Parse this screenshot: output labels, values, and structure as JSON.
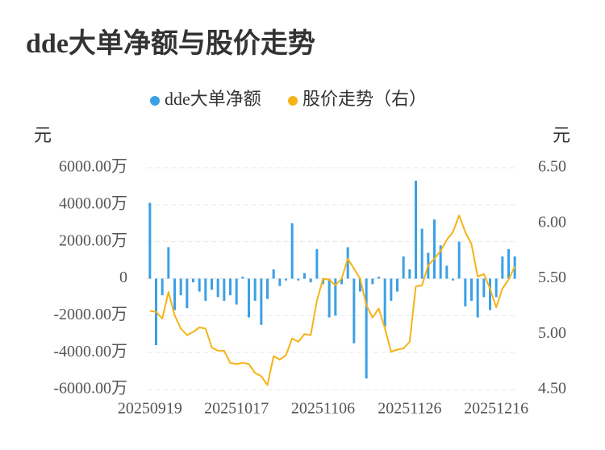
{
  "chart_data": {
    "type": "bar-line",
    "title": "dde大单净额与股价走势",
    "y_label": "元",
    "y2_label": "元",
    "grid": true,
    "legend": "top",
    "categories": [
      "20250919",
      null,
      null,
      null,
      null,
      null,
      null,
      null,
      null,
      null,
      null,
      null,
      null,
      null,
      "20251017",
      null,
      null,
      null,
      null,
      null,
      null,
      null,
      null,
      null,
      null,
      null,
      null,
      null,
      "20251106",
      null,
      null,
      null,
      null,
      null,
      null,
      null,
      null,
      null,
      null,
      null,
      null,
      null,
      "20251126",
      null,
      null,
      null,
      null,
      null,
      null,
      null,
      null,
      null,
      null,
      null,
      null,
      null,
      "20251216",
      null,
      null,
      null
    ],
    "ylim": [
      -6000,
      6000
    ],
    "yticks": [
      {
        "value": 6000,
        "label": "6000.00万"
      },
      {
        "value": 4000,
        "label": "4000.00万"
      },
      {
        "value": 2000,
        "label": "2000.00万"
      },
      0,
      {
        "value": -2000,
        "label": "-2000.00万"
      },
      {
        "value": -4000,
        "label": "-4000.00万"
      },
      {
        "value": -6000,
        "label": "-6000.00万"
      }
    ],
    "y2lim": [
      4.5,
      6.5
    ],
    "y2ticks": [
      {
        "value": 6.5,
        "label": "6.50"
      },
      {
        "value": 6.0,
        "label": "6.00"
      },
      {
        "value": 5.5,
        "label": "5.50"
      },
      {
        "value": 5.0,
        "label": "5.00"
      },
      {
        "value": 4.5,
        "label": "4.50"
      }
    ],
    "series": [
      {
        "name": "dde大单净额",
        "type": "bar",
        "color": "#3ba0e6",
        "values": [
          4100,
          -3600,
          -900,
          1700,
          -1700,
          -900,
          -1600,
          -200,
          -700,
          -1200,
          -600,
          -1000,
          -1200,
          -900,
          -1400,
          100,
          -2100,
          -1200,
          -2500,
          -1100,
          500,
          -400,
          -100,
          3000,
          -100,
          300,
          -200,
          1600,
          -300,
          -2100,
          -2000,
          -300,
          1700,
          -3500,
          -700,
          -5400,
          -300,
          100,
          -2600,
          -1200,
          -700,
          1200,
          500,
          5300,
          2700,
          1400,
          3200,
          1800,
          700,
          -100,
          2000,
          -1500,
          -1200,
          -2100,
          -1000,
          -1700,
          -1000,
          1200,
          1600,
          1200
        ]
      },
      {
        "name": "股价走势（右）",
        "type": "line",
        "axis": "y2",
        "color": "#f5b316",
        "values": [
          5.21,
          5.2,
          5.14,
          5.38,
          5.17,
          5.05,
          4.99,
          5.02,
          5.06,
          5.05,
          4.88,
          4.85,
          4.85,
          4.74,
          4.73,
          4.74,
          4.73,
          4.65,
          4.62,
          4.54,
          4.8,
          4.77,
          4.81,
          4.96,
          4.93,
          5.0,
          4.99,
          5.3,
          5.5,
          5.49,
          5.44,
          5.5,
          5.68,
          5.59,
          5.5,
          5.26,
          5.15,
          5.23,
          5.05,
          4.84,
          4.86,
          4.87,
          4.93,
          5.43,
          5.44,
          5.62,
          5.68,
          5.75,
          5.85,
          5.92,
          6.07,
          5.92,
          5.81,
          5.52,
          5.54,
          5.41,
          5.24,
          5.41,
          5.49,
          5.61
        ]
      }
    ]
  }
}
